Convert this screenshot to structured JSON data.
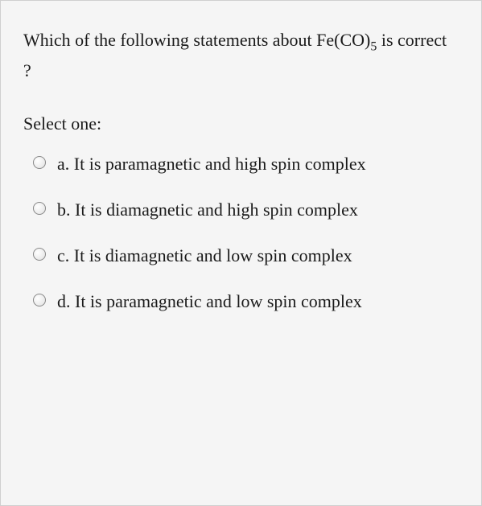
{
  "question": {
    "text_before_formula": "Which of the following statements about Fe(CO)",
    "subscript": "5",
    "text_after_formula": " is correct ?",
    "text_fontsize": 22,
    "text_color": "#1a1a1a"
  },
  "select_prompt": "Select one:",
  "options": [
    {
      "letter": "a.",
      "text": "It is paramagnetic and high spin complex",
      "selected": false
    },
    {
      "letter": "b.",
      "text": "It is diamagnetic and high spin complex",
      "selected": false
    },
    {
      "letter": "c.",
      "text": "It is diamagnetic and low spin complex",
      "selected": false
    },
    {
      "letter": "d.",
      "text": "It is paramagnetic and low spin complex",
      "selected": false
    }
  ],
  "styling": {
    "background_color": "#f5f5f5",
    "border_color": "#d0d0d0",
    "font_family": "Georgia, 'Times New Roman', serif",
    "option_fontsize": 22,
    "radio_border_color": "#888",
    "radio_size": 16
  }
}
